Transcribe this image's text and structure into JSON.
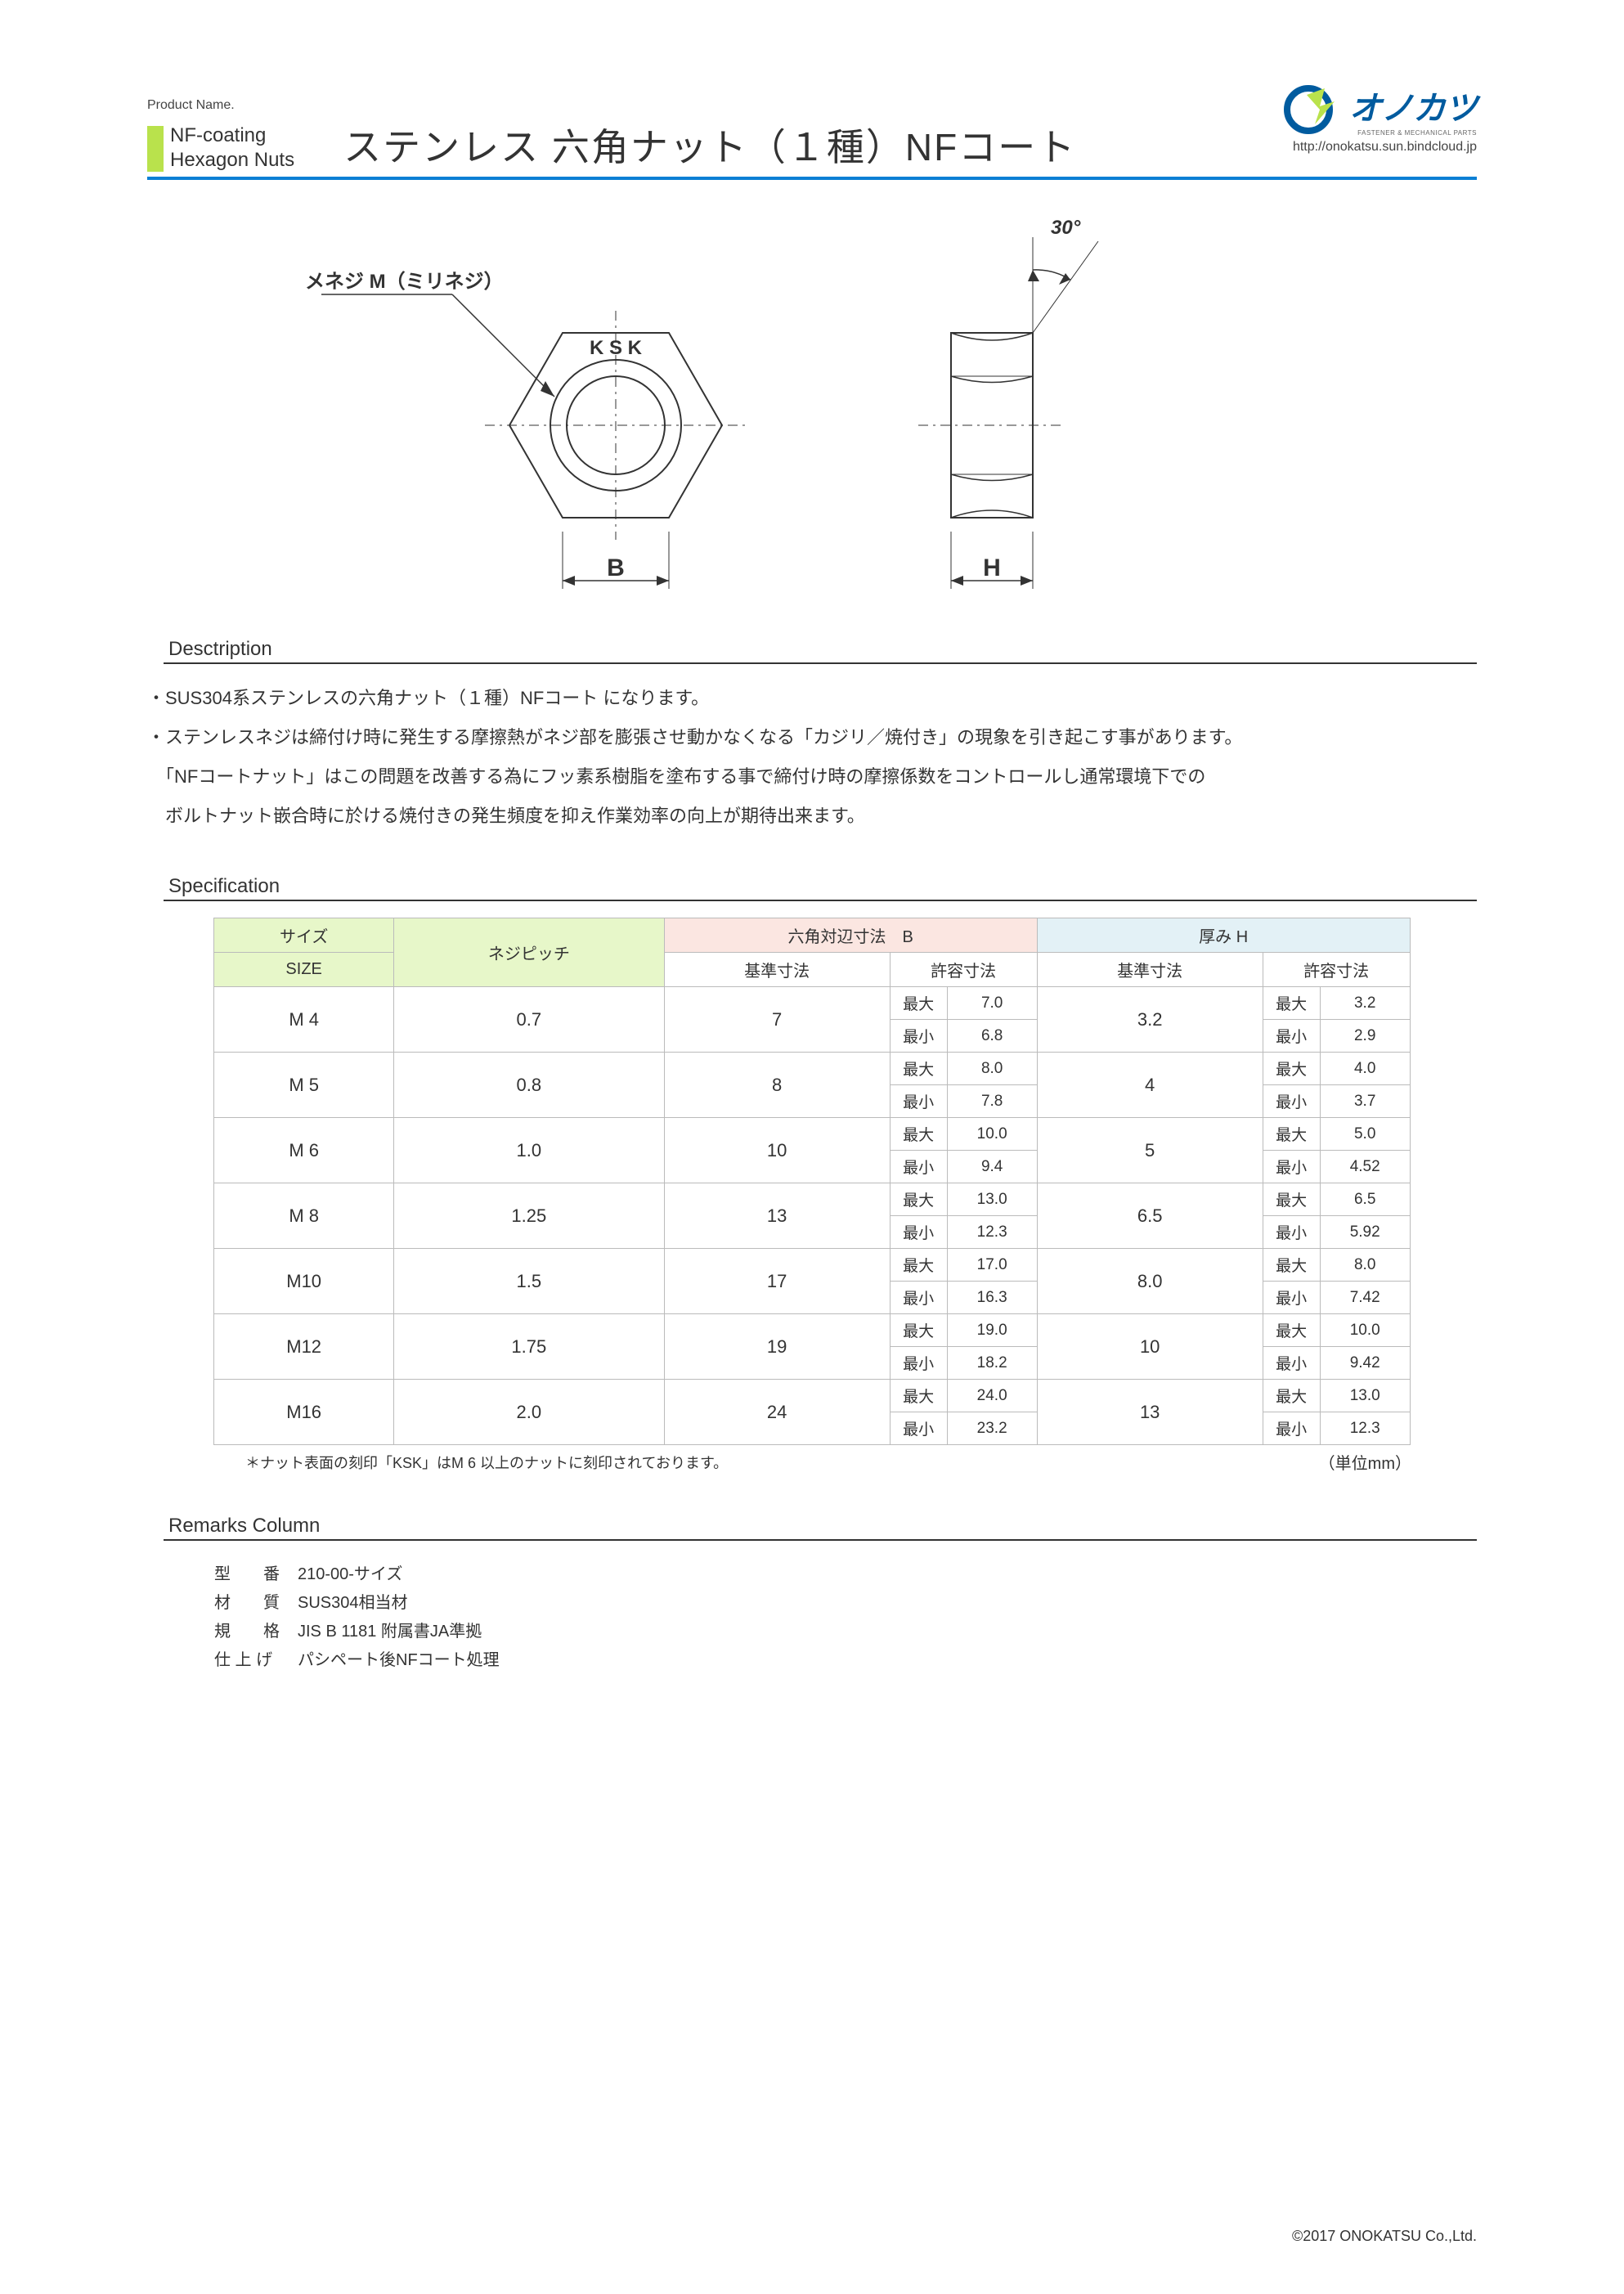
{
  "header": {
    "product_name_label": "Product Name.",
    "sub1": "NF-coating",
    "sub2": "Hexagon Nuts",
    "main_title": "ステンレス 六角ナット（１種）NFコート",
    "logo_text": "オノカツ",
    "logo_sub": "FASTENER & MECHANICAL PARTS",
    "url": "http://onokatsu.sun.bindcloud.jp"
  },
  "diagram": {
    "thread_label": "メネジ M（ミリネジ）",
    "ksk": "K S K",
    "dim_b": "B",
    "dim_h": "H",
    "angle": "30°"
  },
  "description": {
    "heading": "Desctription",
    "lines": [
      "・SUS304系ステンレスの六角ナット（１種）NFコート になります。",
      "・ステンレスネジは締付け時に発生する摩擦熱がネジ部を膨張させ動かなくなる「カジリ／焼付き」の現象を引き起こす事があります。",
      "　「NFコートナット」はこの問題を改善する為にフッ素系樹脂を塗布する事で締付け時の摩擦係数をコントロールし通常環境下での",
      "　ボルトナット嵌合時に於ける焼付きの発生頻度を抑え作業効率の向上が期待出来ます。"
    ]
  },
  "specification": {
    "heading": "Specification",
    "header": {
      "size": "サイズ",
      "size_en": "SIZE",
      "pitch": "ネジピッチ",
      "b_group": "六角対辺寸法　B",
      "h_group": "厚み H",
      "base": "基準寸法",
      "allow": "許容寸法",
      "max": "最大",
      "min": "最小"
    },
    "rows": [
      {
        "size": "M 4",
        "pitch": "0.7",
        "b_base": "7",
        "b_max": "7.0",
        "b_min": "6.8",
        "h_base": "3.2",
        "h_max": "3.2",
        "h_min": "2.9"
      },
      {
        "size": "M 5",
        "pitch": "0.8",
        "b_base": "8",
        "b_max": "8.0",
        "b_min": "7.8",
        "h_base": "4",
        "h_max": "4.0",
        "h_min": "3.7"
      },
      {
        "size": "M 6",
        "pitch": "1.0",
        "b_base": "10",
        "b_max": "10.0",
        "b_min": "9.4",
        "h_base": "5",
        "h_max": "5.0",
        "h_min": "4.52"
      },
      {
        "size": "M 8",
        "pitch": "1.25",
        "b_base": "13",
        "b_max": "13.0",
        "b_min": "12.3",
        "h_base": "6.5",
        "h_max": "6.5",
        "h_min": "5.92"
      },
      {
        "size": "M10",
        "pitch": "1.5",
        "b_base": "17",
        "b_max": "17.0",
        "b_min": "16.3",
        "h_base": "8.0",
        "h_max": "8.0",
        "h_min": "7.42"
      },
      {
        "size": "M12",
        "pitch": "1.75",
        "b_base": "19",
        "b_max": "19.0",
        "b_min": "18.2",
        "h_base": "10",
        "h_max": "10.0",
        "h_min": "9.42"
      },
      {
        "size": "M16",
        "pitch": "2.0",
        "b_base": "24",
        "b_max": "24.0",
        "b_min": "23.2",
        "h_base": "13",
        "h_max": "13.0",
        "h_min": "12.3"
      }
    ],
    "footnote": "＊ナット表面の刻印「KSK」はM 6 以上のナットに刻印されております。",
    "unit": "（単位mm）"
  },
  "remarks": {
    "heading": "Remarks Column",
    "items": [
      {
        "label": "型　　番",
        "value": "210-00-サイズ"
      },
      {
        "label": "材　　質",
        "value": "SUS304相当材"
      },
      {
        "label": "規　　格",
        "value": "JIS B 1181 附属書JA準拠"
      },
      {
        "label": "仕 上 げ",
        "value": "パシペート後NFコート処理"
      }
    ]
  },
  "copyright": "©2017 ONOKATSU  Co.,Ltd.",
  "colors": {
    "brand_blue": "#0a7fd4",
    "logo_blue": "#005b9f",
    "accent_green": "#b9e24c",
    "hdr_green": "#e7f7c9",
    "hdr_pink": "#fbe6e1",
    "hdr_blue": "#e3f1f6",
    "border_gray": "#bbbbbb",
    "text": "#333333"
  }
}
